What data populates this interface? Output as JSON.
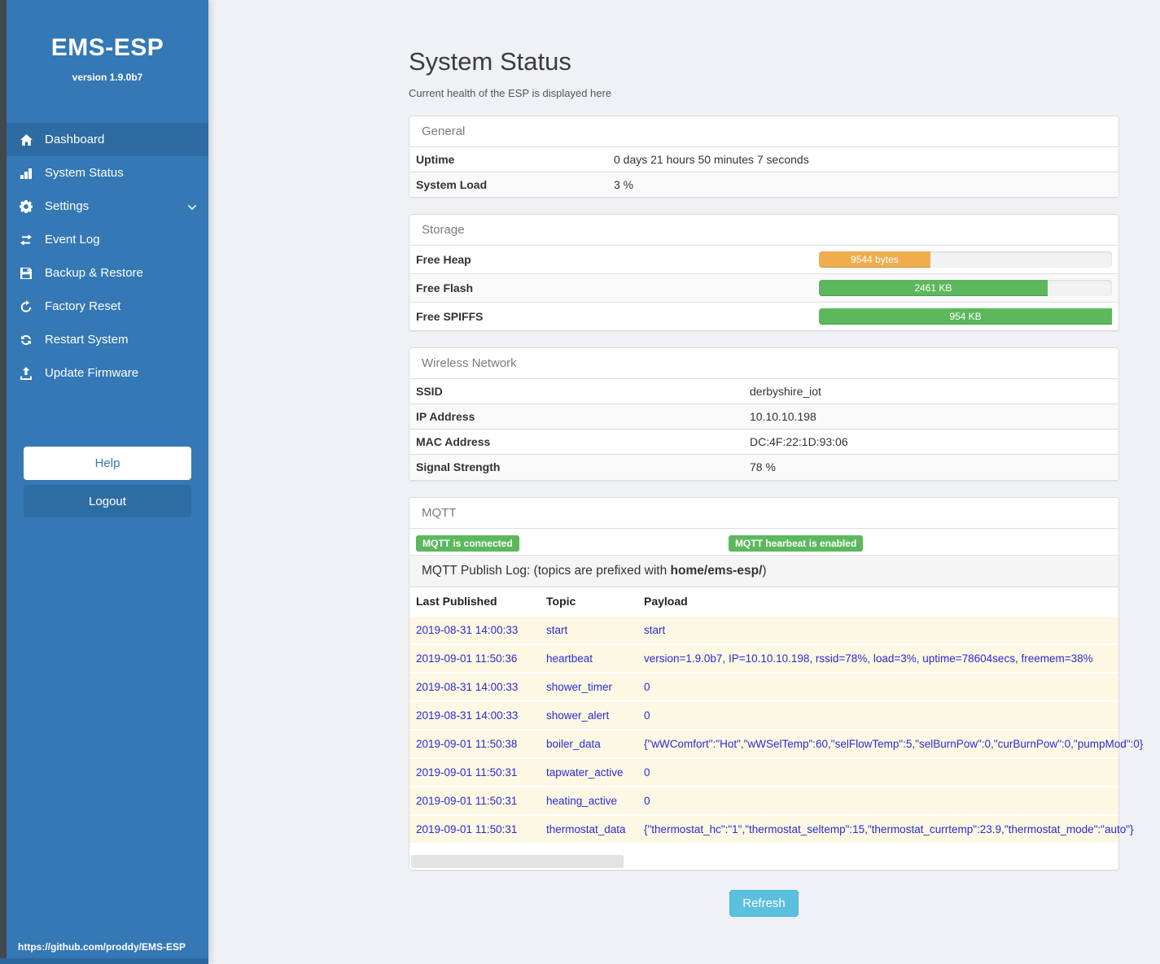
{
  "colors": {
    "sidebar-bg": "#3478b5",
    "sidebar-active": "#2d6ba2",
    "sidebar-strip": "#43484c",
    "footer-strip": "#2b679f",
    "page-bg": "#f0f1f4",
    "accent-blue": "#337ab7",
    "badge-green": "#5cb85c",
    "bar-orange": "#f0ad4e",
    "bar-green": "#5cb85c",
    "refresh-bg": "#5bc0de",
    "link-blue": "#2b2bd5",
    "row-cream": "#fcf8e3"
  },
  "sidebar": {
    "title": "EMS-ESP",
    "version": "version 1.9.0b7",
    "nav": [
      {
        "label": "Dashboard",
        "icon": "home",
        "state": "active"
      },
      {
        "label": "System Status",
        "icon": "system-status",
        "state": ""
      },
      {
        "label": "Settings",
        "icon": "gear",
        "state": "has-chevron"
      },
      {
        "label": "Event Log",
        "icon": "event-log",
        "state": ""
      },
      {
        "label": "Backup & Restore",
        "icon": "backup",
        "state": ""
      },
      {
        "label": "Factory Reset",
        "icon": "factory-reset",
        "state": ""
      },
      {
        "label": "Restart System",
        "icon": "restart",
        "state": ""
      },
      {
        "label": "Update Firmware",
        "icon": "upload",
        "state": ""
      }
    ],
    "help_label": "Help",
    "logout_label": "Logout",
    "footer_link": "https://github.com/proddy/EMS-ESP"
  },
  "header": {
    "title": "System Status",
    "subtitle": "Current health of the ESP is displayed here"
  },
  "general": {
    "heading": "General",
    "rows": [
      {
        "label": "Uptime",
        "value": "0 days 21 hours 50 minutes 7 seconds"
      },
      {
        "label": "System Load",
        "value": "3 %"
      }
    ]
  },
  "storage": {
    "heading": "Storage",
    "rows": [
      {
        "label": "Free Heap",
        "value": "9544 bytes",
        "percent": "38%",
        "color": "orange"
      },
      {
        "label": "Free Flash",
        "value": "2461 KB",
        "percent": "78%",
        "color": "green"
      },
      {
        "label": "Free SPIFFS",
        "value": "954 KB",
        "percent": "100%",
        "color": "green"
      }
    ]
  },
  "wireless": {
    "heading": "Wireless Network",
    "rows": [
      {
        "label": "SSID",
        "value": "derbyshire_iot"
      },
      {
        "label": "IP Address",
        "value": "10.10.10.198"
      },
      {
        "label": "MAC Address",
        "value": "DC:4F:22:1D:93:06"
      },
      {
        "label": "Signal Strength",
        "value": "78 %"
      }
    ]
  },
  "mqtt": {
    "heading": "MQTT",
    "badges": [
      {
        "label": "MQTT is connected"
      },
      {
        "label": "MQTT hearbeat is enabled"
      }
    ],
    "publish_log_prefix": "MQTT Publish Log: (topics are prefixed with ",
    "publish_log_bold": "home/ems-esp/",
    "publish_log_suffix": ")",
    "table": {
      "headers": [
        "Last Published",
        "Topic",
        "Payload"
      ],
      "rows": [
        {
          "published": "2019-08-31 14:00:33",
          "topic": "start",
          "payload": "start"
        },
        {
          "published": "2019-09-01 11:50:36",
          "topic": "heartbeat",
          "payload": "version=1.9.0b7, IP=10.10.10.198, rssid=78%, load=3%, uptime=78604secs, freemem=38%"
        },
        {
          "published": "2019-08-31 14:00:33",
          "topic": "shower_timer",
          "payload": "0"
        },
        {
          "published": "2019-08-31 14:00:33",
          "topic": "shower_alert",
          "payload": "0"
        },
        {
          "published": "2019-09-01 11:50:38",
          "topic": "boiler_data",
          "payload": "{\"wWComfort\":\"Hot\",\"wWSelTemp\":60,\"selFlowTemp\":5,\"selBurnPow\":0,\"curBurnPow\":0,\"pumpMod\":0}"
        },
        {
          "published": "2019-09-01 11:50:31",
          "topic": "tapwater_active",
          "payload": "0"
        },
        {
          "published": "2019-09-01 11:50:31",
          "topic": "heating_active",
          "payload": "0"
        },
        {
          "published": "2019-09-01 11:50:31",
          "topic": "thermostat_data",
          "payload": "{\"thermostat_hc\":\"1\",\"thermostat_seltemp\":15,\"thermostat_currtemp\":23.9,\"thermostat_mode\":\"auto\"}"
        }
      ]
    }
  },
  "refresh_label": "Refresh"
}
